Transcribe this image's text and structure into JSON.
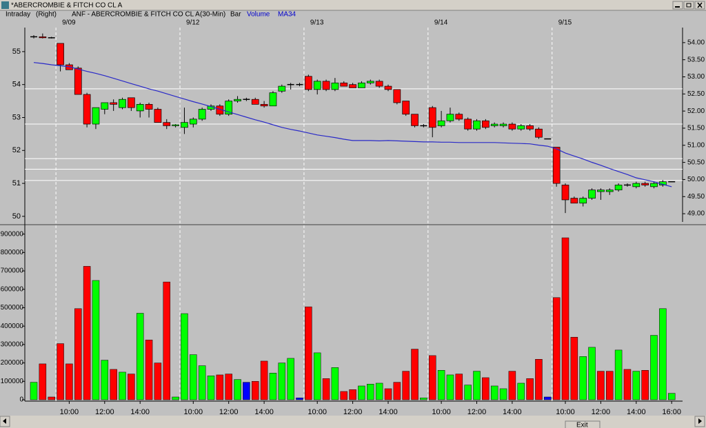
{
  "window": {
    "title": "*ABERCROMBIE & FITCH CO CL A",
    "exit": "Exit"
  },
  "chart_data": [
    {
      "type": "candlestick",
      "header": [
        "Intraday",
        "(Right)",
        "ANF - ABERCROMBIE & FITCH CO CL A",
        "(30-Min)",
        "Bar"
      ],
      "sessions": [
        null,
        null,
        null,
        "9/09",
        null,
        null,
        null,
        null,
        null,
        null,
        null,
        null,
        null,
        null,
        null,
        null,
        null,
        "9/12",
        null,
        null,
        null,
        null,
        null,
        null,
        null,
        null,
        null,
        null,
        null,
        null,
        null,
        "9/13",
        null,
        null,
        null,
        null,
        null,
        null,
        null,
        null,
        null,
        null,
        null,
        null,
        null,
        "9/14",
        null,
        null,
        null,
        null,
        null,
        null,
        null,
        null,
        null,
        null,
        null,
        null,
        null,
        "9/15",
        null,
        null,
        null,
        null,
        null,
        null,
        null,
        null,
        null,
        null,
        null,
        null,
        null
      ],
      "open": [
        55.45,
        55.45,
        55.42,
        55.25,
        54.6,
        54.5,
        53.7,
        52.8,
        53.25,
        53.45,
        53.3,
        53.6,
        53.2,
        53.4,
        53.25,
        52.85,
        52.75,
        52.7,
        52.8,
        52.95,
        53.25,
        53.35,
        53.1,
        53.5,
        53.55,
        53.55,
        53.4,
        53.35,
        53.8,
        54.0,
        54.0,
        54.25,
        53.85,
        54.1,
        53.85,
        54.05,
        54.0,
        53.9,
        54.05,
        54.1,
        53.95,
        53.85,
        53.5,
        53.1,
        52.75,
        53.3,
        52.75,
        52.9,
        53.1,
        52.95,
        52.65,
        52.9,
        52.75,
        52.75,
        52.8,
        52.65,
        52.75,
        52.65,
        52.35,
        52.1,
        50.95,
        50.55,
        50.4,
        50.55,
        50.75,
        50.75,
        50.8,
        50.95,
        50.9,
        51.0,
        50.9,
        50.95,
        51.05
      ],
      "high": [
        55.5,
        55.55,
        55.45,
        55.25,
        54.65,
        54.55,
        53.75,
        53.3,
        53.45,
        53.55,
        53.6,
        53.6,
        53.45,
        53.45,
        53.3,
        52.95,
        52.8,
        53.3,
        53.0,
        53.3,
        53.4,
        53.4,
        53.55,
        53.65,
        53.6,
        53.6,
        53.5,
        53.8,
        54.0,
        54.05,
        54.05,
        54.3,
        54.15,
        54.15,
        54.2,
        54.1,
        54.05,
        54.1,
        54.15,
        54.15,
        54.0,
        53.85,
        53.5,
        53.1,
        52.8,
        53.35,
        53.2,
        53.3,
        53.15,
        53.0,
        52.95,
        52.95,
        52.85,
        52.85,
        52.85,
        52.8,
        52.8,
        52.7,
        52.35,
        52.1,
        51.0,
        50.6,
        50.6,
        50.85,
        50.85,
        50.85,
        51.0,
        51.0,
        51.05,
        51.05,
        51.05,
        51.1,
        51.05
      ],
      "low": [
        55.4,
        55.4,
        55.4,
        54.4,
        54.45,
        53.7,
        52.7,
        52.65,
        53.1,
        53.2,
        53.25,
        53.2,
        53.0,
        53.0,
        52.85,
        52.65,
        52.7,
        52.5,
        52.7,
        52.9,
        53.2,
        53.05,
        53.05,
        53.45,
        53.5,
        53.4,
        53.3,
        53.35,
        53.75,
        53.85,
        53.95,
        53.8,
        53.7,
        53.8,
        53.8,
        53.95,
        53.9,
        53.9,
        54.0,
        53.9,
        53.8,
        53.4,
        53.05,
        52.7,
        52.7,
        52.4,
        52.7,
        52.85,
        52.9,
        52.6,
        52.6,
        52.65,
        52.7,
        52.7,
        52.6,
        52.6,
        52.6,
        52.35,
        52.35,
        50.9,
        50.1,
        50.4,
        50.3,
        50.5,
        50.5,
        50.65,
        50.75,
        50.9,
        50.85,
        50.9,
        50.85,
        50.9,
        51.05
      ],
      "close": [
        55.45,
        55.42,
        55.4,
        54.6,
        54.45,
        53.7,
        52.8,
        53.3,
        53.45,
        53.4,
        53.55,
        53.3,
        53.4,
        53.25,
        52.85,
        52.75,
        52.78,
        52.85,
        52.95,
        53.25,
        53.35,
        53.1,
        53.5,
        53.55,
        53.55,
        53.4,
        53.35,
        53.75,
        53.95,
        54.0,
        54.0,
        53.85,
        54.1,
        53.85,
        54.05,
        53.95,
        53.9,
        54.05,
        54.1,
        53.95,
        53.85,
        53.45,
        53.1,
        52.75,
        52.75,
        52.7,
        52.9,
        53.1,
        52.95,
        52.65,
        52.9,
        52.7,
        52.8,
        52.8,
        52.65,
        52.75,
        52.65,
        52.4,
        52.35,
        51.0,
        50.5,
        50.4,
        50.55,
        50.8,
        50.8,
        50.8,
        50.95,
        50.95,
        51.0,
        50.95,
        51.0,
        51.05,
        51.05
      ],
      "up_color": "#00ff00",
      "down_color": "#ff0000",
      "series": [
        {
          "name": "MA34",
          "color": "#2828c8",
          "values": [
            54.67,
            54.64,
            54.6,
            54.57,
            54.54,
            54.47,
            54.4,
            54.34,
            54.27,
            54.19,
            54.11,
            54.03,
            53.95,
            53.87,
            53.8,
            53.72,
            53.64,
            53.56,
            53.48,
            53.41,
            53.33,
            53.25,
            53.17,
            53.09,
            53.01,
            52.93,
            52.86,
            52.78,
            52.7,
            52.64,
            52.59,
            52.53,
            52.47,
            52.43,
            52.39,
            52.34,
            52.3,
            52.3,
            52.3,
            52.29,
            52.3,
            52.29,
            52.28,
            52.27,
            52.26,
            52.26,
            52.25,
            52.25,
            52.24,
            52.24,
            52.24,
            52.24,
            52.24,
            52.23,
            52.22,
            52.21,
            52.2,
            52.16,
            52.13,
            52.05,
            51.92,
            51.83,
            51.74,
            51.64,
            51.55,
            51.45,
            51.36,
            51.27,
            51.17,
            51.11,
            51.05,
            50.97,
            50.9
          ]
        }
      ],
      "levels": [
        52.65,
        51.62,
        50.61,
        50.3,
        49.97
      ],
      "ylim": [
        49.83,
        55.73
      ],
      "yticks": [
        50,
        51,
        52,
        53,
        54,
        55
      ],
      "y2lim": [
        48.76,
        54.44
      ],
      "y2ticks": [
        {
          "value": 49,
          "label": "49.00"
        },
        {
          "value": 49.5,
          "label": "49.50"
        },
        {
          "value": 50,
          "label": "50.00"
        },
        {
          "value": 50.5,
          "label": "50.50"
        },
        {
          "value": 51,
          "label": "51.00"
        },
        {
          "value": 51.5,
          "label": "51.50"
        },
        {
          "value": 52,
          "label": "52.00"
        },
        {
          "value": 52.5,
          "label": "52.50"
        },
        {
          "value": 53,
          "label": "53.00"
        },
        {
          "value": 53.5,
          "label": "53.50"
        },
        {
          "value": 54,
          "label": "54.00"
        }
      ]
    },
    {
      "type": "bar",
      "categories": [
        null,
        null,
        null,
        null,
        "10:00",
        null,
        null,
        null,
        "12:00",
        null,
        null,
        null,
        "14:00",
        null,
        null,
        null,
        null,
        null,
        "10:00",
        null,
        null,
        null,
        "12:00",
        null,
        null,
        null,
        "14:00",
        null,
        null,
        null,
        null,
        null,
        "10:00",
        null,
        null,
        null,
        "12:00",
        null,
        null,
        null,
        "14:00",
        null,
        null,
        null,
        null,
        null,
        "10:00",
        null,
        null,
        null,
        "12:00",
        null,
        null,
        null,
        "14:00",
        null,
        null,
        null,
        null,
        null,
        "10:00",
        null,
        null,
        null,
        "12:00",
        null,
        null,
        null,
        "14:00",
        null,
        null,
        null,
        "16:00"
      ],
      "series": [
        {
          "name": "Volume",
          "color": "#0000ff",
          "values": [
            95000,
            195000,
            15000,
            305000,
            195000,
            495000,
            725000,
            648000,
            215000,
            165000,
            150000,
            140000,
            470000,
            325000,
            200000,
            640000,
            15000,
            468000,
            245000,
            185000,
            130000,
            135000,
            140000,
            110000,
            95000,
            100000,
            210000,
            145000,
            200000,
            225000,
            10000,
            505000,
            255000,
            115000,
            175000,
            45000,
            55000,
            75000,
            85000,
            90000,
            60000,
            95000,
            155000,
            275000,
            10000,
            240000,
            160000,
            135000,
            140000,
            80000,
            155000,
            120000,
            75000,
            60000,
            155000,
            90000,
            115000,
            220000,
            15000,
            555000,
            880000,
            340000,
            235000,
            285000,
            155000,
            155000,
            270000,
            165000,
            155000,
            160000,
            350000,
            495000,
            35000
          ],
          "colors": [
            "lime",
            "red",
            "red",
            "red",
            "red",
            "red",
            "red",
            "lime",
            "lime",
            "red",
            "lime",
            "red",
            "lime",
            "red",
            "red",
            "red",
            "lime",
            "lime",
            "lime",
            "lime",
            "lime",
            "red",
            "red",
            "lime",
            "blue",
            "red",
            "red",
            "lime",
            "lime",
            "lime",
            "blue",
            "red",
            "lime",
            "red",
            "lime",
            "red",
            "red",
            "lime",
            "lime",
            "lime",
            "red",
            "red",
            "red",
            "red",
            "lime",
            "red",
            "lime",
            "lime",
            "red",
            "lime",
            "lime",
            "red",
            "lime",
            "lime",
            "red",
            "lime",
            "red",
            "red",
            "blue",
            "red",
            "red",
            "red",
            "lime",
            "lime",
            "red",
            "red",
            "lime",
            "red",
            "lime",
            "red",
            "lime",
            "lime",
            "lime"
          ]
        }
      ],
      "ylim": [
        0,
        925000
      ],
      "yticks": [
        0,
        100000,
        200000,
        300000,
        400000,
        500000,
        600000,
        700000,
        800000,
        900000
      ]
    }
  ]
}
